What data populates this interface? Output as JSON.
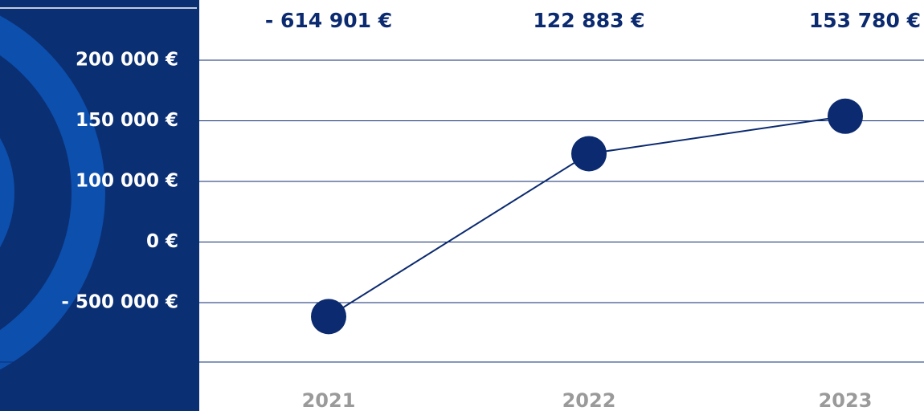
{
  "chart_data": {
    "type": "line",
    "categories": [
      "2021",
      "2022",
      "2023"
    ],
    "values": [
      -614901,
      122883,
      153780
    ],
    "value_labels": [
      "- 614 901 €",
      "122 883 €",
      "153 780 €"
    ],
    "color": "#0b2a6f",
    "yticks": [
      {
        "value": 200000,
        "label": "200 000 €"
      },
      {
        "value": 150000,
        "label": "150 000 €"
      },
      {
        "value": 100000,
        "label": "100 000 €"
      },
      {
        "value": 0,
        "label": "0 €"
      },
      {
        "value": -500000,
        "label": "- 500 000 €"
      }
    ],
    "grid": true
  }
}
